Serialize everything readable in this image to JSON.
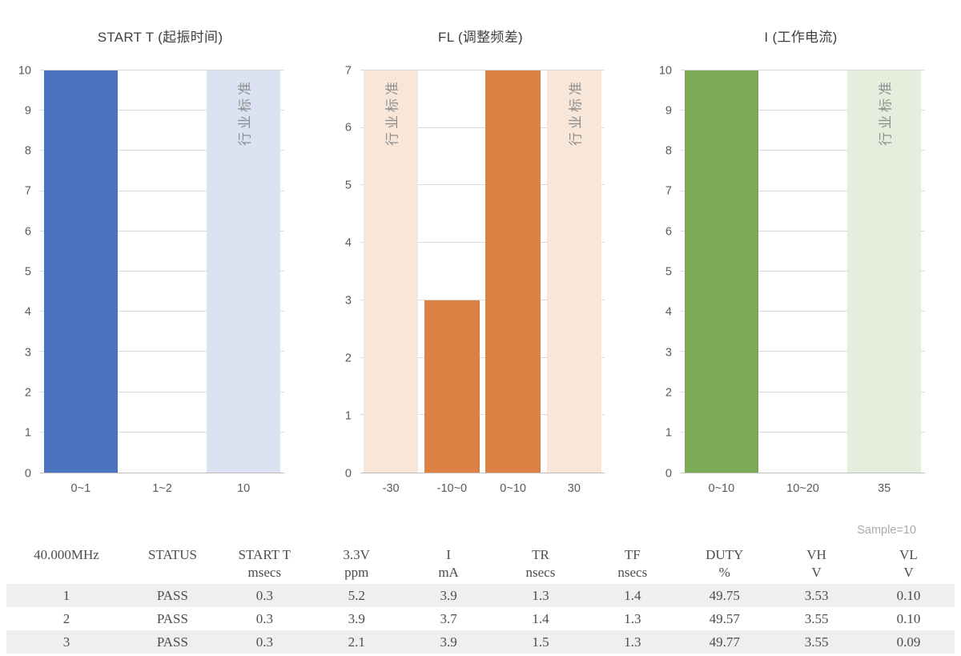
{
  "colors": {
    "blue": "#4a74c0",
    "blue_light": "#dbe2f1",
    "orange": "#dc8044",
    "orange_light": "#f8e7d9",
    "green": "#7daa55",
    "green_light": "#e5eedd",
    "grid": "#d9d9d9",
    "axis_line": "#bcbcbc",
    "standard_label_text": "#8f8f8f",
    "row_stripe": "#efefef"
  },
  "chart_data": [
    {
      "type": "bar",
      "title": "START T (起振时间)",
      "categories": [
        "0~1",
        "1~2",
        "10"
      ],
      "values": [
        10,
        0,
        10
      ],
      "bar_styles": [
        "solid",
        "none",
        "standard"
      ],
      "bar_labels": [
        "",
        "",
        "行业标准"
      ],
      "series_color": "#4a74c0",
      "standard_color": "#dbe2f1",
      "ylim": [
        0,
        10
      ],
      "ytick_step": 1,
      "grid": true,
      "legend": "none"
    },
    {
      "type": "bar",
      "title": "FL (调整频差)",
      "categories": [
        "-30",
        "-10~0",
        "0~10",
        "30"
      ],
      "values": [
        7,
        3,
        7,
        7
      ],
      "bar_styles": [
        "standard",
        "solid",
        "solid",
        "standard"
      ],
      "bar_labels": [
        "行业标准",
        "",
        "",
        "行业标准"
      ],
      "series_color": "#dc8044",
      "standard_color": "#f8e7d9",
      "ylim": [
        0,
        7
      ],
      "ytick_step": 1,
      "grid": true,
      "legend": "none"
    },
    {
      "type": "bar",
      "title": "I (工作电流)",
      "categories": [
        "0~10",
        "10~20",
        "35"
      ],
      "values": [
        10,
        0,
        10
      ],
      "bar_styles": [
        "solid",
        "none",
        "standard"
      ],
      "bar_labels": [
        "",
        "",
        "行业标准"
      ],
      "series_color": "#7daa55",
      "standard_color": "#e5eedd",
      "ylim": [
        0,
        10
      ],
      "ytick_step": 1,
      "grid": true,
      "legend": "none"
    }
  ],
  "table": {
    "sample_note": "Sample=10",
    "columns": [
      {
        "name": "40.000MHz",
        "unit": ""
      },
      {
        "name": "STATUS",
        "unit": ""
      },
      {
        "name": "START T",
        "unit": "msecs"
      },
      {
        "name": "3.3V",
        "unit": "ppm"
      },
      {
        "name": "I",
        "unit": "mA"
      },
      {
        "name": "TR",
        "unit": "nsecs"
      },
      {
        "name": "TF",
        "unit": "nsecs"
      },
      {
        "name": "DUTY",
        "unit": "%"
      },
      {
        "name": "VH",
        "unit": "V"
      },
      {
        "name": "VL",
        "unit": "V"
      }
    ],
    "rows": [
      [
        "1",
        "PASS",
        "0.3",
        "5.2",
        "3.9",
        "1.3",
        "1.4",
        "49.75",
        "3.53",
        "0.10"
      ],
      [
        "2",
        "PASS",
        "0.3",
        "3.9",
        "3.7",
        "1.4",
        "1.3",
        "49.57",
        "3.55",
        "0.10"
      ],
      [
        "3",
        "PASS",
        "0.3",
        "2.1",
        "3.9",
        "1.5",
        "1.3",
        "49.77",
        "3.55",
        "0.09"
      ]
    ]
  }
}
